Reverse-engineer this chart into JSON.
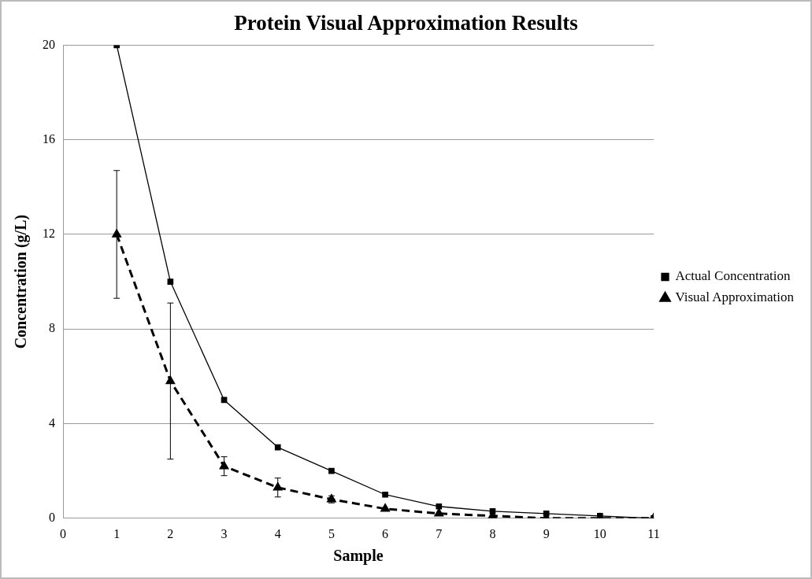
{
  "chart_data": {
    "type": "line",
    "title": "Protein Visual Approximation Results",
    "xlabel": "Sample",
    "ylabel": "Concentration (g/L)",
    "x": [
      1,
      2,
      3,
      4,
      5,
      6,
      7,
      8,
      9,
      10,
      11
    ],
    "series": [
      {
        "name": "Actual Concentration",
        "color": "#000000",
        "marker": "square",
        "line_style": "solid",
        "values": [
          20,
          10,
          5,
          3,
          2,
          1,
          0.5,
          0.3,
          0.2,
          0.1,
          0
        ]
      },
      {
        "name": "Visual Approximation",
        "color": "#000000",
        "marker": "triangle",
        "line_style": "dashed",
        "values": [
          12,
          5.8,
          2.2,
          1.3,
          0.8,
          0.4,
          0.2,
          0.1,
          0,
          0,
          0
        ],
        "errors": [
          2.7,
          3.3,
          0.4,
          0.4,
          0.15,
          null,
          null,
          null,
          null,
          null,
          null
        ]
      }
    ],
    "xlim": [
      0,
      11
    ],
    "xticks": [
      0,
      1,
      2,
      3,
      4,
      5,
      6,
      7,
      8,
      9,
      10,
      11
    ],
    "ylim": [
      0,
      20
    ],
    "yticks": [
      0,
      4,
      8,
      12,
      16,
      20
    ],
    "grid": "y",
    "legend": "right"
  }
}
